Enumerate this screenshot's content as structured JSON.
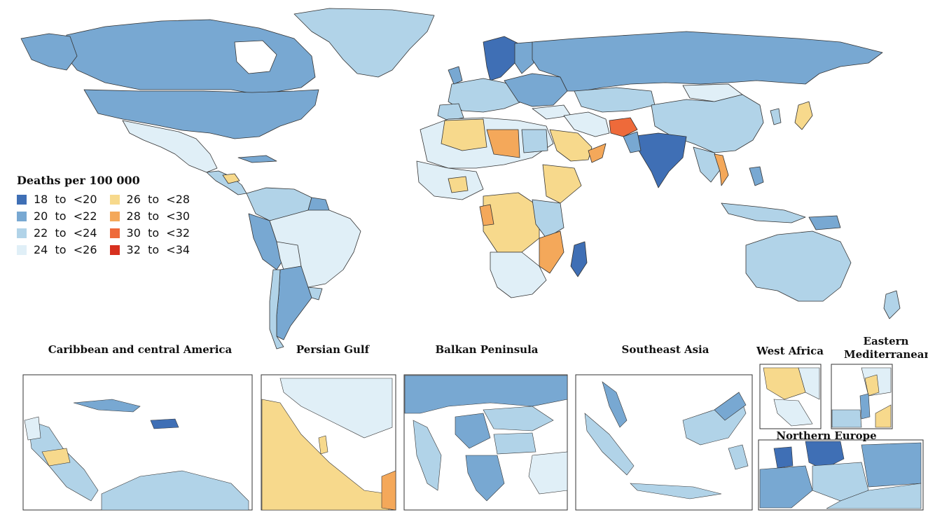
{
  "legend": {
    "title": "Deaths per 100 000",
    "items": [
      {
        "label": "18  to  <20",
        "color": "#3f6fb5"
      },
      {
        "label": "20  to  <22",
        "color": "#78a8d2"
      },
      {
        "label": "22  to  <24",
        "color": "#b1d3e8"
      },
      {
        "label": "24  to  <26",
        "color": "#e0eff7"
      },
      {
        "label": "26  to  <28",
        "color": "#f7d98c"
      },
      {
        "label": "28  to  <30",
        "color": "#f4a85a"
      },
      {
        "label": "30  to  <32",
        "color": "#ee6a3a"
      },
      {
        "label": "32  to  <34",
        "color": "#d7301f"
      }
    ]
  },
  "insets": {
    "caribbean": "Caribbean and central America",
    "persian_gulf": "Persian Gulf",
    "balkan": "Balkan Peninsula",
    "southeast_asia": "Southeast Asia",
    "west_africa": "West Africa",
    "eastern_med": "Eastern Mediterranean",
    "northern_europe": "Northern Europe"
  },
  "colors": {
    "border": "#1a1a1a",
    "ocean": "#ffffff"
  }
}
